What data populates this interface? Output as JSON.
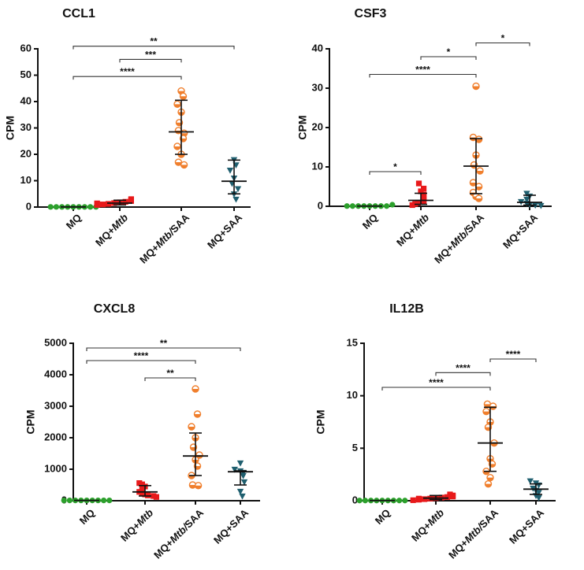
{
  "chart_data": [
    {
      "type": "scatter",
      "title": "CCL1",
      "ylabel": "CPM",
      "ylim": [
        0,
        60
      ],
      "yticks": [
        "0",
        "10",
        "20",
        "30",
        "40",
        "50",
        "60"
      ],
      "categories": [
        {
          "prefix": "MQ",
          "italic": "",
          "suffix": ""
        },
        {
          "prefix": "MQ+",
          "italic": "Mtb",
          "suffix": ""
        },
        {
          "prefix": "MQ+",
          "italic": "Mtb/",
          "suffix": "SAA"
        },
        {
          "prefix": "MQ+SAA",
          "italic": "",
          "suffix": ""
        }
      ],
      "series": [
        {
          "name": "MQ",
          "color": "#2ca02c",
          "marker": "circle",
          "values": [
            0.05,
            0.05,
            0.05,
            0.05,
            0.05,
            0.05,
            0.05,
            0.05,
            0.05
          ],
          "median": 0.05,
          "iqr": [
            0.05,
            0.05
          ]
        },
        {
          "name": "MQ+Mtb",
          "color": "#e8191a",
          "marker": "square",
          "values": [
            0.8,
            1.0,
            1.2,
            1.5,
            1.8,
            2.0,
            2.3,
            2.6,
            3.0,
            1.4,
            1.1
          ],
          "median": 1.5,
          "iqr": [
            0.8,
            2.6
          ]
        },
        {
          "name": "MQ+Mtb/SAA",
          "color": "#f07f2d",
          "marker": "halfcircle",
          "values": [
            44,
            42,
            39,
            36,
            32,
            29,
            28,
            26,
            23,
            20,
            17,
            16
          ],
          "median": 28.5,
          "iqr": [
            20,
            40.5
          ]
        },
        {
          "name": "MQ+SAA",
          "color": "#1f5f6f",
          "marker": "triangle",
          "values": [
            18,
            16,
            14,
            11,
            9,
            7,
            5,
            3
          ],
          "median": 9.8,
          "iqr": [
            5,
            17.8
          ]
        }
      ],
      "significance": [
        {
          "from": 0,
          "to": 3,
          "y": 61,
          "label": "**"
        },
        {
          "from": 1,
          "to": 2,
          "y": 56,
          "label": "***"
        },
        {
          "from": 0,
          "to": 2,
          "y": 49.5,
          "label": "****"
        }
      ]
    },
    {
      "type": "scatter",
      "title": "CSF3",
      "ylabel": "CPM",
      "ylim": [
        0,
        40
      ],
      "yticks": [
        "0",
        "10",
        "20",
        "30",
        "40"
      ],
      "categories": [
        {
          "prefix": "MQ",
          "italic": "",
          "suffix": ""
        },
        {
          "prefix": "MQ+",
          "italic": "Mtb",
          "suffix": ""
        },
        {
          "prefix": "MQ+",
          "italic": "Mtb/",
          "suffix": "SAA"
        },
        {
          "prefix": "MQ+SAA",
          "italic": "",
          "suffix": ""
        }
      ],
      "series": [
        {
          "name": "MQ",
          "color": "#2ca02c",
          "marker": "circle",
          "values": [
            0.05,
            0.05,
            0.05,
            0.05,
            0.05,
            0.05,
            0.05,
            0.05,
            0.4
          ],
          "median": 0.05,
          "iqr": [
            0.05,
            0.05
          ]
        },
        {
          "name": "MQ+Mtb",
          "color": "#e8191a",
          "marker": "square",
          "values": [
            0.3,
            0.6,
            0.9,
            1.2,
            1.6,
            2.0,
            2.5,
            3.0,
            3.8,
            4.5,
            5.8
          ],
          "median": 1.5,
          "iqr": [
            0.5,
            3.3
          ]
        },
        {
          "name": "MQ+Mtb/SAA",
          "color": "#f07f2d",
          "marker": "halfcircle",
          "values": [
            30.5,
            17.5,
            17,
            13,
            10.5,
            9,
            6,
            5,
            3.5,
            2.5,
            2
          ],
          "median": 10.2,
          "iqr": [
            3.2,
            17.2
          ]
        },
        {
          "name": "MQ+SAA",
          "color": "#1f5f6f",
          "marker": "triangle",
          "values": [
            3.3,
            2.6,
            1.8,
            1.2,
            0.8,
            0.5,
            0.3,
            0.2
          ],
          "median": 1.0,
          "iqr": [
            0.3,
            2.8
          ]
        }
      ],
      "significance": [
        {
          "from": 2,
          "to": 3,
          "y": 41.5,
          "label": "*"
        },
        {
          "from": 1,
          "to": 2,
          "y": 38,
          "label": "*"
        },
        {
          "from": 0,
          "to": 2,
          "y": 33.5,
          "label": "****"
        },
        {
          "from": 0,
          "to": 1,
          "y": 8.8,
          "label": "*"
        }
      ]
    },
    {
      "type": "scatter",
      "title": "CXCL8",
      "ylabel": "CPM",
      "ylim": [
        0,
        5000
      ],
      "yticks": [
        "0",
        "1000",
        "2000",
        "3000",
        "4000",
        "5000"
      ],
      "categories": [
        {
          "prefix": "MQ",
          "italic": "",
          "suffix": ""
        },
        {
          "prefix": "MQ+",
          "italic": "Mtb",
          "suffix": ""
        },
        {
          "prefix": "MQ+",
          "italic": "Mtb/",
          "suffix": "SAA"
        },
        {
          "prefix": "MQ+SAA",
          "italic": "",
          "suffix": ""
        }
      ],
      "series": [
        {
          "name": "MQ",
          "color": "#2ca02c",
          "marker": "circle",
          "values": [
            10,
            10,
            10,
            10,
            10,
            10,
            10,
            10,
            10
          ],
          "median": 10,
          "iqr": [
            10,
            10
          ]
        },
        {
          "name": "MQ+Mtb",
          "color": "#e8191a",
          "marker": "square",
          "values": [
            560,
            520,
            450,
            380,
            320,
            280,
            240,
            200,
            170,
            150,
            120
          ],
          "median": 280,
          "iqr": [
            150,
            480
          ]
        },
        {
          "name": "MQ+Mtb/SAA",
          "color": "#f07f2d",
          "marker": "halfcircle",
          "values": [
            3550,
            2750,
            2350,
            2000,
            1700,
            1450,
            1300,
            1100,
            800,
            500,
            480
          ],
          "median": 1420,
          "iqr": [
            800,
            2150
          ]
        },
        {
          "name": "MQ+SAA",
          "color": "#1f5f6f",
          "marker": "triangle",
          "values": [
            1200,
            1000,
            950,
            900,
            800,
            600,
            300,
            150
          ],
          "median": 920,
          "iqr": [
            500,
            950
          ]
        }
      ],
      "significance": [
        {
          "from": 0,
          "to": 3,
          "y": 4850,
          "label": "**"
        },
        {
          "from": 0,
          "to": 2,
          "y": 4450,
          "label": "****"
        },
        {
          "from": 1,
          "to": 2,
          "y": 3900,
          "label": "**"
        }
      ]
    },
    {
      "type": "scatter",
      "title": "IL12B",
      "ylabel": "CPM",
      "ylim": [
        0,
        15
      ],
      "yticks": [
        "0",
        "5",
        "10",
        "15"
      ],
      "categories": [
        {
          "prefix": "MQ",
          "italic": "",
          "suffix": ""
        },
        {
          "prefix": "MQ+",
          "italic": "Mtb",
          "suffix": ""
        },
        {
          "prefix": "MQ+",
          "italic": "Mtb/",
          "suffix": "SAA"
        },
        {
          "prefix": "MQ+SAA",
          "italic": "",
          "suffix": ""
        }
      ],
      "series": [
        {
          "name": "MQ",
          "color": "#2ca02c",
          "marker": "circle",
          "values": [
            0.02,
            0.02,
            0.02,
            0.02,
            0.02,
            0.02,
            0.02,
            0.02,
            0.02
          ],
          "median": 0.02,
          "iqr": [
            0.02,
            0.02
          ]
        },
        {
          "name": "MQ+Mtb",
          "color": "#e8191a",
          "marker": "square",
          "values": [
            0.05,
            0.1,
            0.15,
            0.2,
            0.25,
            0.3,
            0.35,
            0.4,
            0.5,
            0.6,
            0.2
          ],
          "median": 0.25,
          "iqr": [
            0.1,
            0.5
          ]
        },
        {
          "name": "MQ+Mtb/SAA",
          "color": "#f07f2d",
          "marker": "halfcircle",
          "values": [
            9.2,
            9.0,
            8.5,
            7.5,
            7.0,
            5.5,
            4.0,
            3.5,
            2.8,
            2.2,
            1.6
          ],
          "median": 5.5,
          "iqr": [
            2.8,
            8.9
          ]
        },
        {
          "name": "MQ+SAA",
          "color": "#1f5f6f",
          "marker": "triangle",
          "values": [
            1.9,
            1.7,
            1.5,
            1.2,
            1.0,
            0.8,
            0.5,
            0.3
          ],
          "median": 1.1,
          "iqr": [
            0.6,
            1.6
          ]
        }
      ],
      "significance": [
        {
          "from": 2,
          "to": 3,
          "y": 13.5,
          "label": "****"
        },
        {
          "from": 1,
          "to": 2,
          "y": 12.2,
          "label": "****"
        },
        {
          "from": 0,
          "to": 2,
          "y": 10.8,
          "label": "****"
        }
      ]
    }
  ]
}
